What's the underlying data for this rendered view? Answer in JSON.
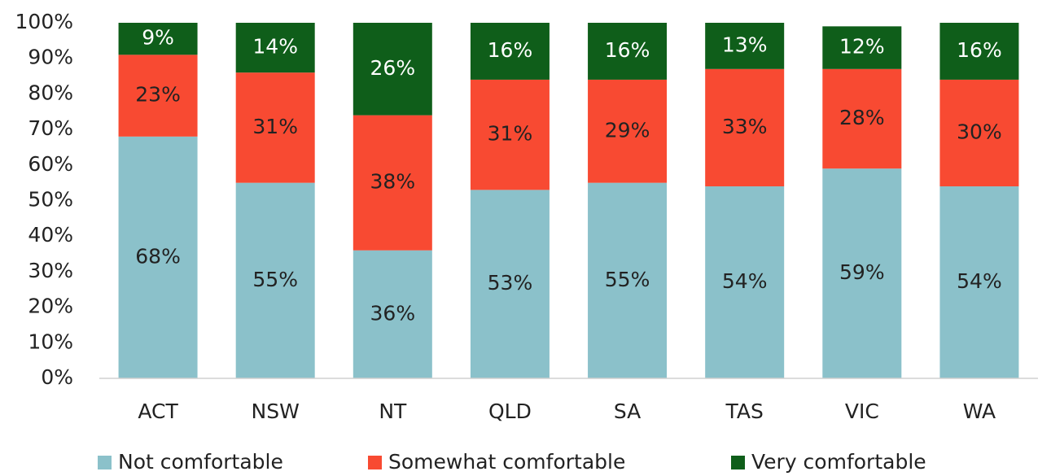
{
  "chart_data": {
    "type": "stacked_bar",
    "categories": [
      "ACT",
      "NSW",
      "NT",
      "QLD",
      "SA",
      "TAS",
      "VIC",
      "WA"
    ],
    "series": [
      {
        "name": "Not comfortable",
        "color": "#8bc1ca",
        "values": [
          68,
          55,
          36,
          53,
          55,
          54,
          59,
          54
        ],
        "value_labels": [
          "68%",
          "55%",
          "36%",
          "53%",
          "55%",
          "54%",
          "59%",
          "54%"
        ]
      },
      {
        "name": "Somewhat comfortable",
        "color": "#f84a32",
        "values": [
          23,
          31,
          38,
          31,
          29,
          33,
          28,
          30
        ],
        "value_labels": [
          "23%",
          "31%",
          "38%",
          "31%",
          "29%",
          "33%",
          "28%",
          "30%"
        ]
      },
      {
        "name": "Very comfortable",
        "color": "#0f5e1a",
        "values": [
          9,
          14,
          26,
          16,
          16,
          13,
          12,
          16
        ],
        "value_labels": [
          "9%",
          "14%",
          "26%",
          "16%",
          "16%",
          "13%",
          "12%",
          "16%"
        ]
      }
    ],
    "ylim": [
      0,
      100
    ],
    "yticks": [
      {
        "value": 0,
        "label": "0%"
      },
      {
        "value": 10,
        "label": "10%"
      },
      {
        "value": 20,
        "label": "20%"
      },
      {
        "value": 30,
        "label": "30%"
      },
      {
        "value": 40,
        "label": "40%"
      },
      {
        "value": 50,
        "label": "50%"
      },
      {
        "value": 60,
        "label": "60%"
      },
      {
        "value": 70,
        "label": "70%"
      },
      {
        "value": 80,
        "label": "80%"
      },
      {
        "value": 90,
        "label": "90%"
      },
      {
        "value": 100,
        "label": "100%"
      }
    ],
    "legend": "bottom"
  }
}
